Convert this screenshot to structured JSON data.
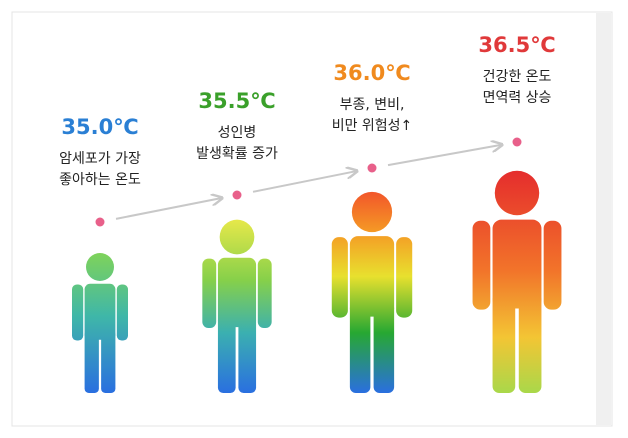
{
  "items": [
    {
      "temperature": "35.0℃",
      "description": [
        "암세포가 가장",
        "좋아하는 온도"
      ]
    },
    {
      "temperature": "35.5℃",
      "description": [
        "성인병",
        "발생확률 증가"
      ]
    },
    {
      "temperature": "36.0℃",
      "description": [
        "부종, 변비,",
        "비만 위험성↑"
      ]
    },
    {
      "temperature": "36.5℃",
      "description": [
        "건강한 온도",
        "면역력 상승"
      ]
    }
  ]
}
